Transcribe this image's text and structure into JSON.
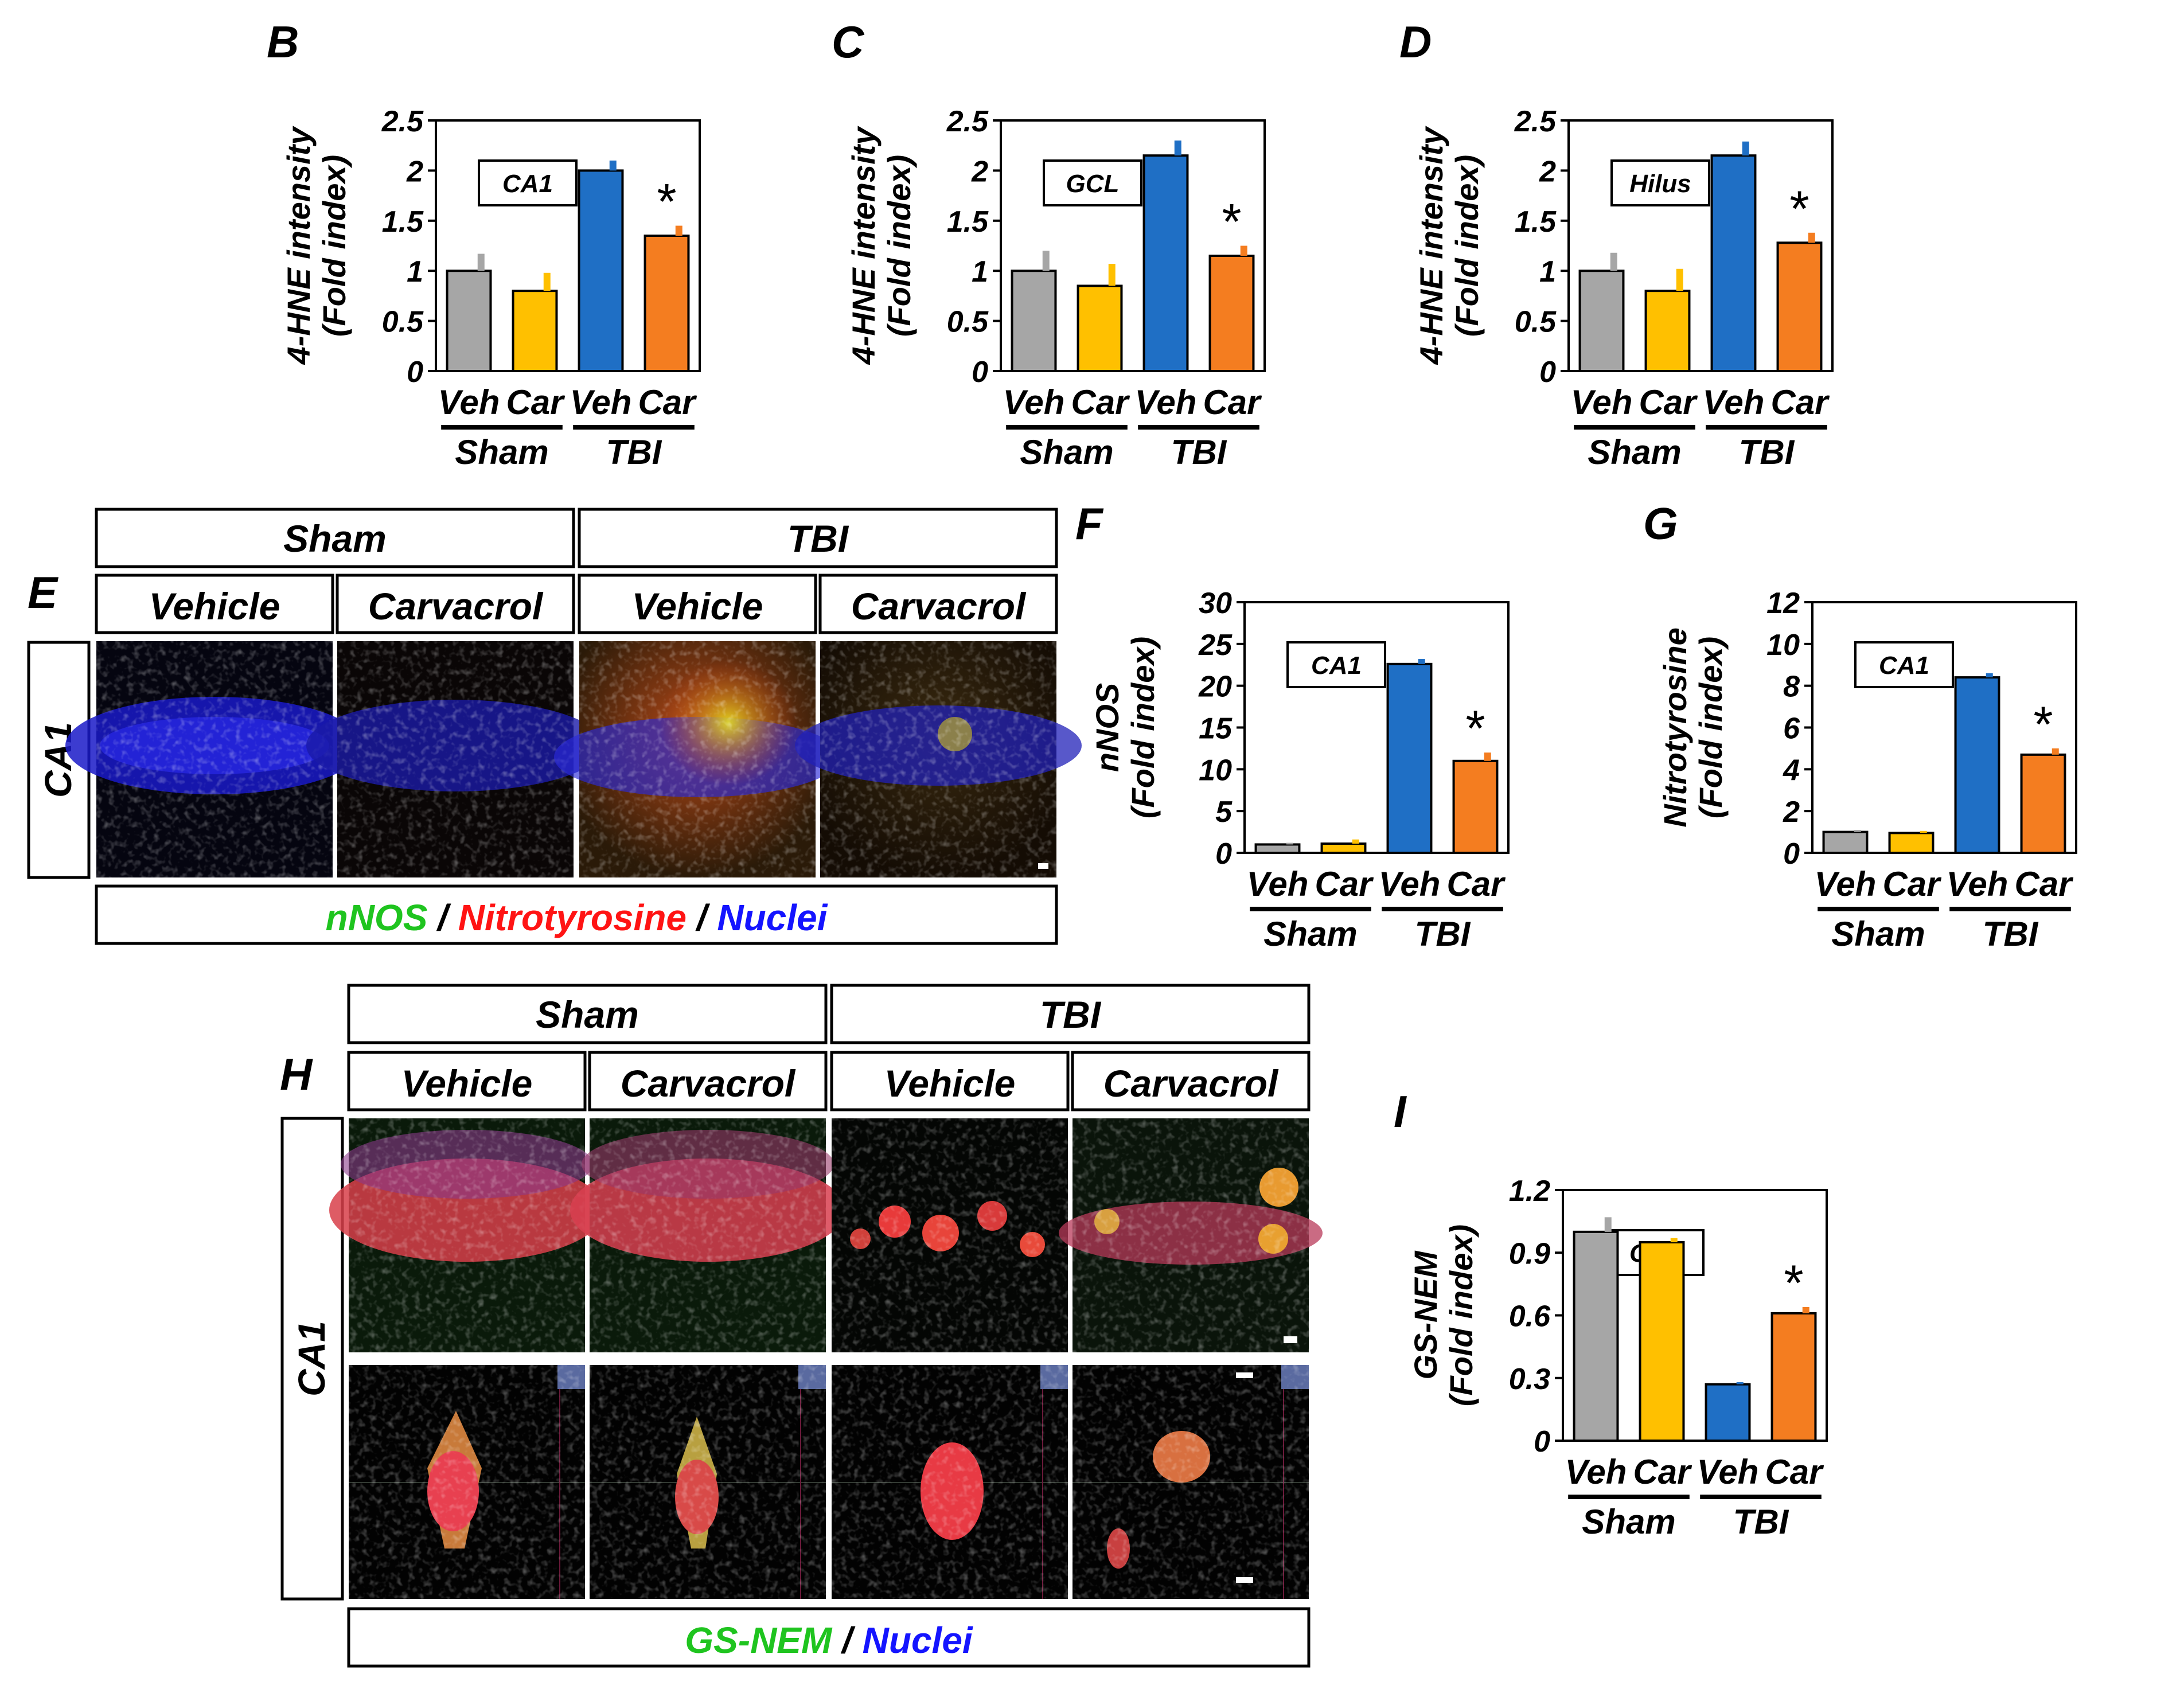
{
  "figure": {
    "microscopy_e": {
      "panel_letter": "E",
      "groups": [
        "Sham",
        "TBI"
      ],
      "columns": [
        "Vehicle",
        "Carvacrol",
        "Vehicle",
        "Carvacrol"
      ],
      "row_label": "CA1",
      "legend": [
        {
          "text": "nNOS",
          "color": "#1fc41f"
        },
        {
          "text": " / ",
          "color": "#000000"
        },
        {
          "text": "Nitrotyrosine",
          "color": "#ff1414"
        },
        {
          "text": " / ",
          "color": "#000000"
        },
        {
          "text": "Nuclei",
          "color": "#1414ff"
        }
      ]
    },
    "microscopy_h": {
      "panel_letter": "H",
      "groups": [
        "Sham",
        "TBI"
      ],
      "columns": [
        "Vehicle",
        "Carvacrol",
        "Vehicle",
        "Carvacrol"
      ],
      "row_label": "CA1",
      "legend": [
        {
          "text": "GS-NEM",
          "color": "#1fc41f"
        },
        {
          "text": " / ",
          "color": "#000000"
        },
        {
          "text": "Nuclei",
          "color": "#1414ff"
        }
      ]
    }
  },
  "chart_data": [
    {
      "type": "bar",
      "panel": "B",
      "title": "",
      "inset_label": "CA1",
      "ylabel_lines": [
        "4-HNE intensity",
        "(Fold index)"
      ],
      "ylim": [
        0,
        2.5
      ],
      "yticks": [
        "0",
        "0.5",
        "1",
        "1.5",
        "2",
        "2.5"
      ],
      "categories": [
        "Veh",
        "Car",
        "Veh",
        "Car"
      ],
      "groups": [
        "Sham",
        "TBI"
      ],
      "values": [
        1.0,
        0.8,
        2.0,
        1.35
      ],
      "errors": [
        0.17,
        0.18,
        0.1,
        0.1
      ],
      "colors": [
        "#a6a6a6",
        "#ffc000",
        "#1f6fc5",
        "#f47d20"
      ],
      "significance": [
        "",
        "",
        "",
        "*"
      ]
    },
    {
      "type": "bar",
      "panel": "C",
      "title": "",
      "inset_label": "GCL",
      "ylabel_lines": [
        "4-HNE intensity",
        "(Fold index)"
      ],
      "ylim": [
        0,
        2.5
      ],
      "yticks": [
        "0",
        "0.5",
        "1",
        "1.5",
        "2",
        "2.5"
      ],
      "categories": [
        "Veh",
        "Car",
        "Veh",
        "Car"
      ],
      "groups": [
        "Sham",
        "TBI"
      ],
      "values": [
        1.0,
        0.85,
        2.15,
        1.15
      ],
      "errors": [
        0.2,
        0.22,
        0.15,
        0.1
      ],
      "colors": [
        "#a6a6a6",
        "#ffc000",
        "#1f6fc5",
        "#f47d20"
      ],
      "significance": [
        "",
        "",
        "",
        "*"
      ]
    },
    {
      "type": "bar",
      "panel": "D",
      "title": "",
      "inset_label": "Hilus",
      "ylabel_lines": [
        "4-HNE intensity",
        "(Fold index)"
      ],
      "ylim": [
        0,
        2.5
      ],
      "yticks": [
        "0",
        "0.5",
        "1",
        "1.5",
        "2",
        "2.5"
      ],
      "categories": [
        "Veh",
        "Car",
        "Veh",
        "Car"
      ],
      "groups": [
        "Sham",
        "TBI"
      ],
      "values": [
        1.0,
        0.8,
        2.15,
        1.28
      ],
      "errors": [
        0.18,
        0.22,
        0.14,
        0.1
      ],
      "colors": [
        "#a6a6a6",
        "#ffc000",
        "#1f6fc5",
        "#f47d20"
      ],
      "significance": [
        "",
        "",
        "",
        "*"
      ]
    },
    {
      "type": "bar",
      "panel": "F",
      "title": "",
      "inset_label": "CA1",
      "ylabel_lines": [
        "nNOS",
        "(Fold index)"
      ],
      "ylim": [
        0,
        30
      ],
      "yticks": [
        "0",
        "5",
        "10",
        "15",
        "20",
        "25",
        "30"
      ],
      "categories": [
        "Veh",
        "Car",
        "Veh",
        "Car"
      ],
      "groups": [
        "Sham",
        "TBI"
      ],
      "values": [
        1.0,
        1.1,
        22.6,
        11.0
      ],
      "errors": [
        0.2,
        0.5,
        0.6,
        1.0
      ],
      "colors": [
        "#a6a6a6",
        "#ffc000",
        "#1f6fc5",
        "#f47d20"
      ],
      "significance": [
        "",
        "",
        "",
        "*"
      ]
    },
    {
      "type": "bar",
      "panel": "G",
      "title": "",
      "inset_label": "CA1",
      "ylabel_lines": [
        "Nitrotyrosine",
        "(Fold index)"
      ],
      "ylim": [
        0,
        12
      ],
      "yticks": [
        "0",
        "2",
        "4",
        "6",
        "8",
        "10",
        "12"
      ],
      "categories": [
        "Veh",
        "Car",
        "Veh",
        "Car"
      ],
      "groups": [
        "Sham",
        "TBI"
      ],
      "values": [
        1.0,
        0.95,
        8.4,
        4.7
      ],
      "errors": [
        0.1,
        0.1,
        0.2,
        0.3
      ],
      "colors": [
        "#a6a6a6",
        "#ffc000",
        "#1f6fc5",
        "#f47d20"
      ],
      "significance": [
        "",
        "",
        "",
        "*"
      ]
    },
    {
      "type": "bar",
      "panel": "I",
      "title": "",
      "inset_label": "CA1",
      "ylabel_lines": [
        "GS-NEM",
        "(Fold index)"
      ],
      "ylim": [
        0,
        1.2
      ],
      "yticks": [
        "0",
        "0.3",
        "0.6",
        "0.9",
        "1.2"
      ],
      "categories": [
        "Veh",
        "Car",
        "Veh",
        "Car"
      ],
      "groups": [
        "Sham",
        "TBI"
      ],
      "values": [
        1.0,
        0.95,
        0.27,
        0.61
      ],
      "errors": [
        0.07,
        0.02,
        0.01,
        0.03
      ],
      "colors": [
        "#a6a6a6",
        "#ffc000",
        "#1f6fc5",
        "#f47d20"
      ],
      "significance": [
        "",
        "",
        "",
        "*"
      ]
    }
  ]
}
